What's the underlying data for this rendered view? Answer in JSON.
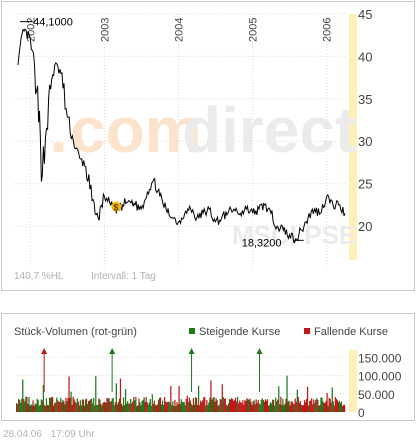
{
  "colors": {
    "price_line": "#000000",
    "axis_text": "#444444",
    "grid": "#dcdcdc",
    "right_strip": "#fff0b8",
    "watermark": "#ebebeb",
    "watermark_orange": "#fbe3cc",
    "rising": "#1a7a1a",
    "falling": "#c01818",
    "muted_text": "#b0b0b0",
    "legend_text": "#444444"
  },
  "watermark": {
    "dot": ".",
    "com": "com",
    "direct": "direct",
    "sub": "MSCI PSE"
  },
  "chart_data": [
    {
      "type": "line",
      "title": "",
      "x": [
        "2001-11",
        "2001-12",
        "2002-01",
        "2002-02",
        "2002-03",
        "2002-04",
        "2002-05",
        "2002-06",
        "2002-07",
        "2002-08",
        "2002-09",
        "2002-10",
        "2002-11",
        "2002-12",
        "2003-01",
        "2003-02",
        "2003-03",
        "2003-04",
        "2003-05",
        "2003-06",
        "2003-07",
        "2003-08",
        "2003-09",
        "2003-10",
        "2003-11",
        "2003-12",
        "2004-01",
        "2004-02",
        "2004-03",
        "2004-04",
        "2004-05",
        "2004-06",
        "2004-07",
        "2004-08",
        "2004-09",
        "2004-10",
        "2004-11",
        "2004-12",
        "2005-01",
        "2005-02",
        "2005-03",
        "2005-04",
        "2005-05",
        "2005-06",
        "2005-07",
        "2005-08",
        "2005-09",
        "2005-10",
        "2005-11",
        "2005-12",
        "2006-01",
        "2006-02",
        "2006-03",
        "2006-04"
      ],
      "series": [
        {
          "values": [
            39,
            43,
            42,
            36,
            26,
            35,
            39,
            38,
            33,
            30,
            28,
            27,
            23,
            21,
            23.5,
            22.5,
            21.5,
            22.5,
            23,
            22.5,
            22,
            24,
            25.5,
            23.5,
            22,
            21,
            20.5,
            21.5,
            22,
            21,
            21.5,
            22,
            20.5,
            21,
            21.5,
            22,
            21.5,
            22,
            21.5,
            22,
            22.5,
            21.5,
            20,
            19.5,
            19,
            18.5,
            19.5,
            21,
            22,
            21.5,
            23.5,
            22.5,
            22.5,
            21.5
          ]
        }
      ],
      "ylim": [
        16,
        45
      ],
      "y_ticks": [
        "20",
        "25",
        "30",
        "35",
        "40",
        "45"
      ],
      "x_tick_labels": [
        "2002",
        "2003",
        "2004",
        "2005",
        "2006"
      ],
      "annotations": [
        {
          "label": "44,1000",
          "x": "2001-12",
          "y": 44.1
        },
        {
          "label": "18,3200",
          "x": "2005-08",
          "y": 18.32
        },
        {
          "label": "$",
          "x": "2003-03",
          "y": 22.3
        }
      ],
      "footer_left": "140,7 %HL",
      "footer_right": "Intervall: 1 Tag",
      "grid": true
    },
    {
      "type": "bar",
      "title": "Stück-Volumen (rot-grün)",
      "legend": [
        {
          "label": "Steigende Kurse",
          "color": "#1a7a1a"
        },
        {
          "label": "Fallende Kurse",
          "color": "#c01818"
        }
      ],
      "ylim": [
        0,
        170000
      ],
      "y_ticks": [
        "0",
        "50.000",
        "100.000",
        "150.000"
      ],
      "spike_markers": [
        {
          "x": "2002-03",
          "color": "#c01818"
        },
        {
          "x": "2003-02",
          "color": "#1a7a1a"
        },
        {
          "x": "2004-03",
          "color": "#1a7a1a"
        },
        {
          "x": "2005-02",
          "color": "#1a7a1a"
        }
      ]
    }
  ],
  "footer": {
    "date": "28.04.06",
    "time": "17:09 Uhr"
  }
}
